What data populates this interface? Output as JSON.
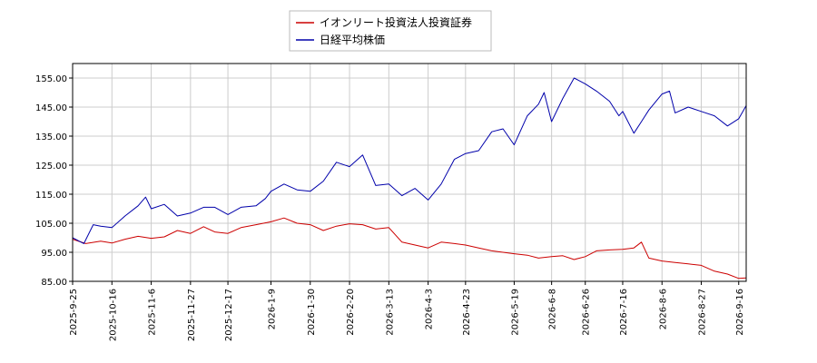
{
  "chart_data": {
    "type": "line",
    "title": "",
    "xlabel": "",
    "ylabel": "",
    "ylim": [
      85,
      160
    ],
    "yticks": [
      "85.00",
      "95.00",
      "105.00",
      "115.00",
      "125.00",
      "135.00",
      "145.00",
      "155.00"
    ],
    "xlim": [
      "2025-09-25",
      "2026-09-20"
    ],
    "xticks": [
      "2025-9-25",
      "2025-10-16",
      "2025-11-6",
      "2025-11-27",
      "2025-12-17",
      "2026-1-9",
      "2026-1-30",
      "2026-2-20",
      "2026-3-13",
      "2026-4-3",
      "2026-4-23",
      "2026-5-19",
      "2026-6-8",
      "2026-6-26",
      "2026-7-16",
      "2026-8-6",
      "2026-8-27",
      "2026-9-16"
    ],
    "grid": true,
    "legend": "top-center",
    "series": [
      {
        "name": "イオンリート投資法人投資証券",
        "color": "#cc0000",
        "points": [
          [
            "2025-09-25",
            99.5
          ],
          [
            "2025-10-02",
            98.0
          ],
          [
            "2025-10-10",
            98.8
          ],
          [
            "2025-10-16",
            98.2
          ],
          [
            "2025-10-23",
            99.5
          ],
          [
            "2025-10-30",
            100.5
          ],
          [
            "2025-11-06",
            99.8
          ],
          [
            "2025-11-13",
            100.3
          ],
          [
            "2025-11-20",
            102.5
          ],
          [
            "2025-11-27",
            101.5
          ],
          [
            "2025-12-04",
            103.8
          ],
          [
            "2025-12-10",
            102.0
          ],
          [
            "2025-12-17",
            101.5
          ],
          [
            "2025-12-24",
            103.5
          ],
          [
            "2026-01-01",
            104.5
          ],
          [
            "2026-01-09",
            105.5
          ],
          [
            "2026-01-16",
            106.8
          ],
          [
            "2026-01-23",
            105.0
          ],
          [
            "2026-01-30",
            104.5
          ],
          [
            "2026-02-06",
            102.5
          ],
          [
            "2026-02-13",
            104.0
          ],
          [
            "2026-02-20",
            104.8
          ],
          [
            "2026-02-27",
            104.5
          ],
          [
            "2026-03-06",
            103.0
          ],
          [
            "2026-03-13",
            103.5
          ],
          [
            "2026-03-20",
            98.5
          ],
          [
            "2026-03-27",
            97.5
          ],
          [
            "2026-04-03",
            96.5
          ],
          [
            "2026-04-10",
            98.5
          ],
          [
            "2026-04-17",
            98.0
          ],
          [
            "2026-04-23",
            97.5
          ],
          [
            "2026-04-30",
            96.5
          ],
          [
            "2026-05-07",
            95.5
          ],
          [
            "2026-05-13",
            95.0
          ],
          [
            "2026-05-19",
            94.5
          ],
          [
            "2026-05-26",
            94.0
          ],
          [
            "2026-06-01",
            93.0
          ],
          [
            "2026-06-08",
            93.5
          ],
          [
            "2026-06-14",
            93.8
          ],
          [
            "2026-06-20",
            92.5
          ],
          [
            "2026-06-26",
            93.5
          ],
          [
            "2026-07-02",
            95.5
          ],
          [
            "2026-07-09",
            95.8
          ],
          [
            "2026-07-16",
            96.0
          ],
          [
            "2026-07-22",
            96.5
          ],
          [
            "2026-07-26",
            98.5
          ],
          [
            "2026-07-30",
            93.0
          ],
          [
            "2026-08-06",
            92.0
          ],
          [
            "2026-08-13",
            91.5
          ],
          [
            "2026-08-20",
            91.0
          ],
          [
            "2026-08-27",
            90.5
          ],
          [
            "2026-09-03",
            88.5
          ],
          [
            "2026-09-10",
            87.5
          ],
          [
            "2026-09-16",
            86.0
          ],
          [
            "2026-09-20",
            86.2
          ]
        ]
      },
      {
        "name": "日経平均株価",
        "color": "#0000aa",
        "points": [
          [
            "2025-09-25",
            100.0
          ],
          [
            "2025-10-01",
            98.0
          ],
          [
            "2025-10-06",
            104.5
          ],
          [
            "2025-10-10",
            104.0
          ],
          [
            "2025-10-16",
            103.5
          ],
          [
            "2025-10-23",
            107.5
          ],
          [
            "2025-10-30",
            111.0
          ],
          [
            "2025-11-03",
            114.0
          ],
          [
            "2025-11-06",
            110.0
          ],
          [
            "2025-11-13",
            111.5
          ],
          [
            "2025-11-20",
            107.5
          ],
          [
            "2025-11-27",
            108.5
          ],
          [
            "2025-12-04",
            110.5
          ],
          [
            "2025-12-10",
            110.5
          ],
          [
            "2025-12-17",
            108.0
          ],
          [
            "2025-12-24",
            110.5
          ],
          [
            "2026-01-01",
            111.0
          ],
          [
            "2026-01-06",
            113.5
          ],
          [
            "2026-01-09",
            116.0
          ],
          [
            "2026-01-16",
            118.5
          ],
          [
            "2026-01-23",
            116.5
          ],
          [
            "2026-01-30",
            116.0
          ],
          [
            "2026-02-06",
            119.5
          ],
          [
            "2026-02-13",
            126.0
          ],
          [
            "2026-02-20",
            124.5
          ],
          [
            "2026-02-27",
            128.5
          ],
          [
            "2026-03-06",
            118.0
          ],
          [
            "2026-03-13",
            118.5
          ],
          [
            "2026-03-20",
            114.5
          ],
          [
            "2026-03-27",
            117.0
          ],
          [
            "2026-04-03",
            113.0
          ],
          [
            "2026-04-10",
            118.5
          ],
          [
            "2026-04-17",
            127.0
          ],
          [
            "2026-04-23",
            129.0
          ],
          [
            "2026-04-30",
            130.0
          ],
          [
            "2026-05-07",
            136.5
          ],
          [
            "2026-05-13",
            137.5
          ],
          [
            "2026-05-19",
            132.0
          ],
          [
            "2026-05-26",
            142.0
          ],
          [
            "2026-06-01",
            146.0
          ],
          [
            "2026-06-04",
            150.0
          ],
          [
            "2026-06-08",
            140.0
          ],
          [
            "2026-06-14",
            148.0
          ],
          [
            "2026-06-20",
            155.0
          ],
          [
            "2026-06-26",
            153.0
          ],
          [
            "2026-07-02",
            150.5
          ],
          [
            "2026-07-09",
            147.0
          ],
          [
            "2026-07-14",
            142.0
          ],
          [
            "2026-07-16",
            143.5
          ],
          [
            "2026-07-22",
            136.0
          ],
          [
            "2026-07-26",
            140.0
          ],
          [
            "2026-07-30",
            144.0
          ],
          [
            "2026-08-06",
            149.5
          ],
          [
            "2026-08-10",
            150.5
          ],
          [
            "2026-08-13",
            143.0
          ],
          [
            "2026-08-20",
            145.0
          ],
          [
            "2026-08-27",
            143.5
          ],
          [
            "2026-09-03",
            142.0
          ],
          [
            "2026-09-10",
            138.5
          ],
          [
            "2026-09-16",
            141.0
          ],
          [
            "2026-09-20",
            145.5
          ]
        ]
      }
    ]
  }
}
